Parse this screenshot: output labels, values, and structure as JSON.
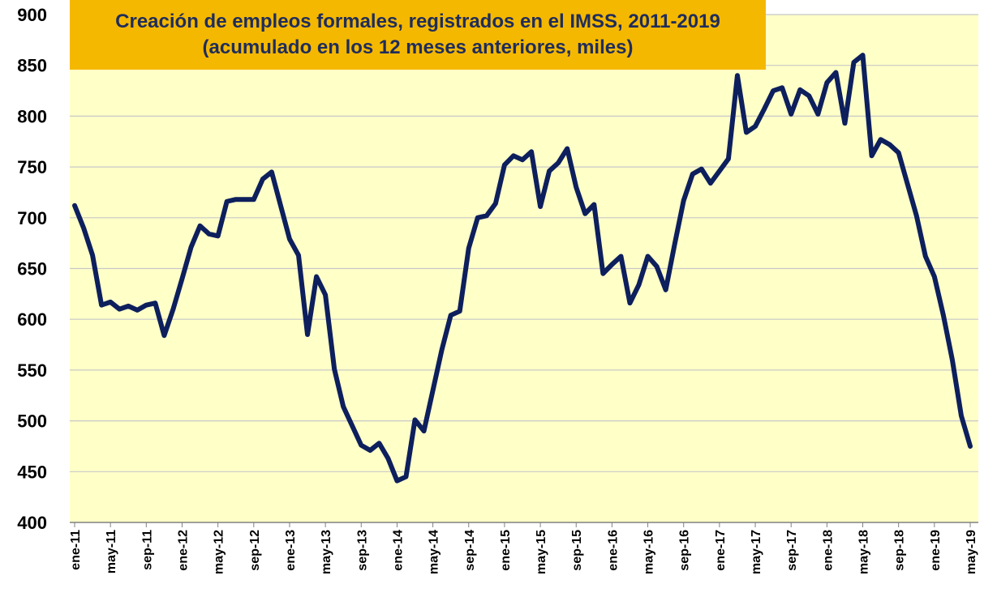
{
  "chart_data": {
    "type": "line",
    "title": "Creación de empleos formales, registrados en el IMSS, 2011-2019",
    "subtitle": "(acumulado en los 12 meses anteriores, miles)",
    "xlabel": "",
    "ylabel": "",
    "ylim": [
      400,
      900
    ],
    "yticks": [
      "400",
      "450",
      "500",
      "550",
      "600",
      "650",
      "700",
      "750",
      "800",
      "850",
      "900"
    ],
    "x_tick_labels": [
      "ene-11",
      "may-11",
      "sep-11",
      "ene-12",
      "may-12",
      "sep-12",
      "ene-13",
      "may-13",
      "sep-13",
      "ene-14",
      "may-14",
      "sep-14",
      "ene-15",
      "may-15",
      "sep-15",
      "ene-16",
      "may-16",
      "sep-16",
      "ene-17",
      "may-17",
      "sep-17",
      "ene-18",
      "may-18",
      "sep-18",
      "ene-19",
      "may-19"
    ],
    "grid": "horizontal",
    "colors": {
      "line": "#0D1F5C",
      "plot_bg": "#FFFFC8",
      "title_bg": "#F5B800",
      "title_text": "#1F2D5C",
      "grid": "#C8C8C8"
    },
    "series": [
      {
        "values": [
          712,
          690,
          663,
          614,
          617,
          610,
          613,
          609,
          614,
          616,
          584,
          610,
          640,
          671,
          692,
          684,
          682,
          716,
          718,
          718,
          718,
          738,
          745,
          712,
          679,
          663,
          585,
          642,
          624,
          551,
          514,
          495,
          476,
          471,
          478,
          463,
          441,
          445,
          501,
          490,
          530,
          570,
          604,
          608,
          670,
          700,
          702,
          714,
          752,
          761,
          757,
          765,
          711,
          746,
          754,
          768,
          730,
          704,
          713,
          645,
          654,
          662,
          616,
          634,
          662,
          652,
          629,
          674,
          717,
          743,
          748,
          734,
          746,
          758,
          840,
          784,
          790,
          807,
          825,
          828,
          802,
          826,
          820,
          802,
          833,
          843,
          793,
          853,
          860,
          761,
          777,
          772,
          764,
          733,
          702,
          662,
          642,
          604,
          560,
          505,
          475
        ]
      }
    ]
  }
}
